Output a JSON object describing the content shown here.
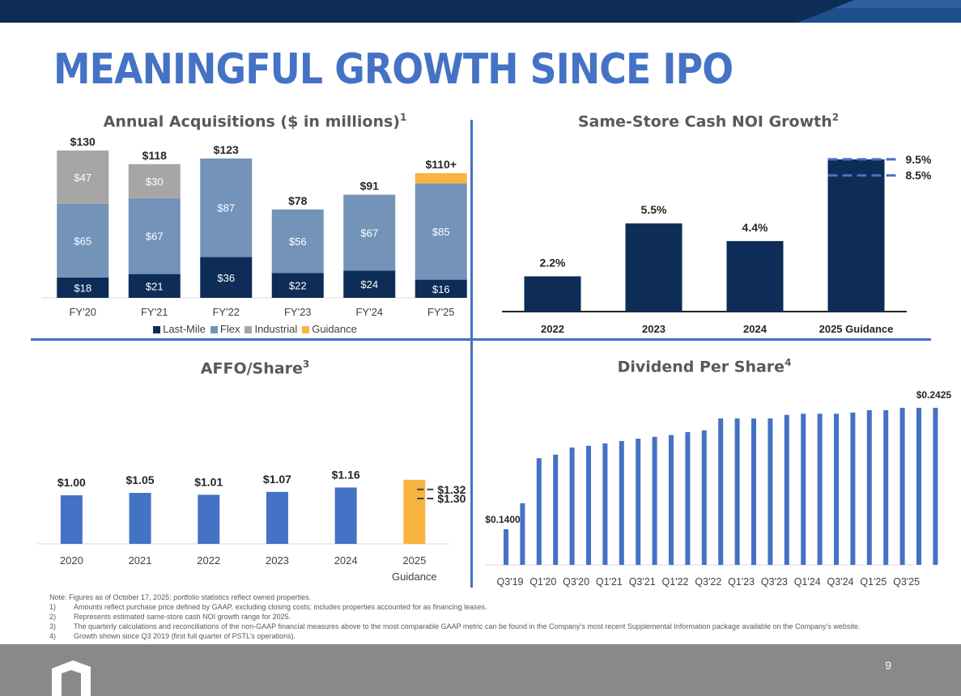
{
  "title": "MEANINGFUL GROWTH SINCE IPO",
  "page_number": "9",
  "colors": {
    "navy": "#0d2c57",
    "flex_blue": "#7393b9",
    "industrial_gray": "#a6a6a6",
    "guidance_orange": "#f8b43f",
    "bright_blue": "#4472c4"
  },
  "panels": {
    "acquisitions": {
      "title": "Annual Acquisitions ($ in millions)",
      "footnote": "1"
    },
    "noi": {
      "title": "Same-Store Cash NOI Growth",
      "footnote": "2"
    },
    "affo": {
      "title": "AFFO/Share",
      "footnote": "3"
    },
    "dividend": {
      "title": "Dividend Per Share",
      "footnote": "4"
    }
  },
  "chart_data": [
    {
      "id": "acquisitions",
      "type": "bar",
      "stacked": true,
      "title": "Annual Acquisitions ($ in millions)",
      "categories": [
        "FY'20",
        "FY'21",
        "FY'22",
        "FY'23",
        "FY'24",
        "FY'25"
      ],
      "series": [
        {
          "name": "Last-Mile",
          "values": [
            18,
            21,
            36,
            22,
            24,
            16
          ],
          "labels": [
            "$18",
            "$21",
            "$36",
            "$22",
            "$24",
            "$16"
          ],
          "color": "#0d2c57"
        },
        {
          "name": "Flex",
          "values": [
            65,
            67,
            87,
            56,
            67,
            85
          ],
          "labels": [
            "$65",
            "$67",
            "$87",
            "$56",
            "$67",
            "$85"
          ],
          "color": "#7393b9"
        },
        {
          "name": "Industrial",
          "values": [
            47,
            30,
            0,
            0,
            0,
            0
          ],
          "labels": [
            "$47",
            "$30",
            "",
            "",
            "",
            ""
          ],
          "color": "#a6a6a6"
        },
        {
          "name": "Guidance",
          "values": [
            0,
            0,
            0,
            0,
            0,
            9
          ],
          "labels": [
            "",
            "",
            "",
            "",
            "",
            ""
          ],
          "color": "#f8b43f"
        }
      ],
      "totals": [
        "$130",
        "$118",
        "$123",
        "$78",
        "$91",
        "$110+"
      ],
      "legend_position": "bottom",
      "ylim": [
        0,
        140
      ]
    },
    {
      "id": "noi",
      "type": "bar",
      "title": "Same-Store Cash NOI Growth",
      "categories": [
        "2022",
        "2023",
        "2024",
        "2025 Guidance"
      ],
      "values": [
        2.2,
        5.5,
        4.4,
        9.5
      ],
      "labels": [
        "2.2%",
        "5.5%",
        "4.4%",
        ""
      ],
      "guidance_range": {
        "low": 8.5,
        "high": 9.5,
        "low_label": "8.5%",
        "high_label": "9.5%"
      },
      "color": "#0d2c57",
      "ylim": [
        0,
        10.5
      ]
    },
    {
      "id": "affo",
      "type": "bar",
      "title": "AFFO/Share",
      "categories": [
        "2020",
        "2021",
        "2022",
        "2023",
        "2024",
        "2025 Guidance"
      ],
      "category_lines": [
        [
          "2020"
        ],
        [
          "2021"
        ],
        [
          "2022"
        ],
        [
          "2023"
        ],
        [
          "2024"
        ],
        [
          "2025",
          "Guidance"
        ]
      ],
      "values": [
        1.0,
        1.05,
        1.01,
        1.07,
        1.16,
        1.32
      ],
      "labels": [
        "$1.00",
        "$1.05",
        "$1.01",
        "$1.07",
        "$1.16",
        ""
      ],
      "colors": [
        "#4472c4",
        "#4472c4",
        "#4472c4",
        "#4472c4",
        "#4472c4",
        "#f8b43f"
      ],
      "guidance_range": {
        "low": 1.3,
        "high": 1.32,
        "low_label": "$1.30",
        "high_label": "$1.32"
      },
      "ylim": [
        0,
        1.4
      ]
    },
    {
      "id": "dividend",
      "type": "bar",
      "title": "Dividend Per Share",
      "tick_labels": [
        "Q3'19",
        "Q1'20",
        "Q3'20",
        "Q1'21",
        "Q3'21",
        "Q1'22",
        "Q3'22",
        "Q1'23",
        "Q3'23",
        "Q1'24",
        "Q3'24",
        "Q1'25",
        "Q3'25"
      ],
      "values": [
        0.14,
        0.162,
        0.2,
        0.203,
        0.209,
        0.2105,
        0.2125,
        0.2145,
        0.2165,
        0.218,
        0.2195,
        0.222,
        0.2235,
        0.2335,
        0.2335,
        0.2335,
        0.2335,
        0.2365,
        0.2375,
        0.2375,
        0.2375,
        0.2385,
        0.2405,
        0.2405,
        0.2425,
        0.2425,
        0.2425
      ],
      "first_label": "$0.1400",
      "last_label": "$0.2425",
      "color": "#4472c4",
      "ylim": [
        0.11,
        0.25
      ]
    }
  ],
  "notes": {
    "header": "Note: Figures as of October 17, 2025; portfolio statistics reflect owned properties.",
    "items": [
      {
        "num": "1)",
        "text": "Amounts reflect purchase price defined by GAAP, excluding closing costs; includes properties accounted for as financing leases."
      },
      {
        "num": "2)",
        "text": "Represents estimated same-store cash NOI growth range for 2025."
      },
      {
        "num": "3)",
        "text": "The quarterly calculations and reconciliations of the non-GAAP financial measures above to the most comparable GAAP metric can be found in the Company’s most recent Supplemental Information package available on the Company’s website."
      },
      {
        "num": "4)",
        "text": "Growth shown since Q3 2019 (first full quarter of PSTL’s operations)."
      }
    ]
  }
}
